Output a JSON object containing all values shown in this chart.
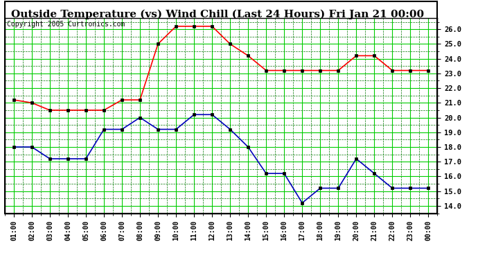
{
  "title": "Outside Temperature (vs) Wind Chill (Last 24 Hours) Fri Jan 21 00:00",
  "copyright": "Copyright 2005 Curtronics.com",
  "x_labels": [
    "01:00",
    "02:00",
    "03:00",
    "04:00",
    "05:00",
    "06:00",
    "07:00",
    "08:00",
    "09:00",
    "10:00",
    "11:00",
    "12:00",
    "13:00",
    "14:00",
    "15:00",
    "16:00",
    "17:00",
    "18:00",
    "19:00",
    "20:00",
    "21:00",
    "22:00",
    "23:00",
    "00:00"
  ],
  "outside_temp": [
    21.2,
    21.0,
    20.5,
    20.5,
    20.5,
    20.5,
    21.2,
    21.2,
    25.0,
    26.2,
    26.2,
    26.2,
    25.0,
    24.2,
    23.2,
    23.2,
    23.2,
    23.2,
    23.2,
    24.2,
    24.2,
    23.2,
    23.2,
    23.2
  ],
  "wind_chill": [
    18.0,
    18.0,
    17.2,
    17.2,
    17.2,
    19.2,
    19.2,
    20.0,
    19.2,
    19.2,
    20.2,
    20.2,
    19.2,
    18.0,
    16.2,
    16.2,
    14.2,
    15.2,
    15.2,
    17.2,
    16.2,
    15.2,
    15.2,
    15.2
  ],
  "temp_color": "#ff0000",
  "chill_color": "#0000bb",
  "bg_color": "#ffffff",
  "plot_bg": "#ffffff",
  "grid_color_major": "#00cc00",
  "grid_color_minor": "#007700",
  "ylim": [
    13.5,
    26.75
  ],
  "yticks": [
    14.0,
    15.0,
    16.0,
    17.0,
    18.0,
    19.0,
    20.0,
    21.0,
    22.0,
    23.0,
    24.0,
    25.0,
    26.0
  ],
  "title_fontsize": 11,
  "copyright_fontsize": 7,
  "marker": "s",
  "marker_size": 2.5,
  "linewidth": 1.2
}
